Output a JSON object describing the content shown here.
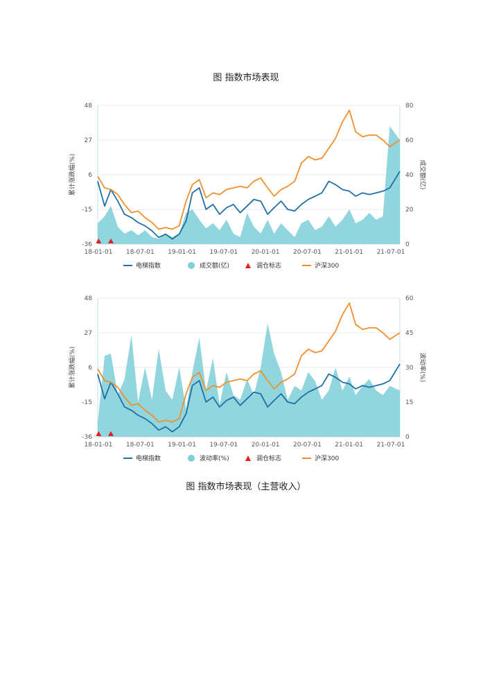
{
  "page": {
    "title_top": "图 指数市场表现",
    "title_bottom": "图 指数市场表现（主营收入）"
  },
  "colors": {
    "elevator": "#1f6fa5",
    "hs300": "#f0902a",
    "fill": "#7ecfd8",
    "flag": "#e02020",
    "grid": "#e8e8e8",
    "axis": "#bfe6ea"
  },
  "chart_data": [
    {
      "type": "line",
      "y_left": {
        "label": "累计涨跌幅(%)",
        "ticks": [
          "48",
          "27",
          "6",
          "-15",
          "-36"
        ],
        "range": [
          -36,
          48
        ]
      },
      "y_right": {
        "label": "成交额(亿)",
        "ticks": [
          "80",
          "60",
          "40",
          "20",
          "0"
        ],
        "range": [
          0,
          80
        ]
      },
      "x_ticks": [
        "18-01-01",
        "18-07-01",
        "19-01-01",
        "19-07-01",
        "20-01-01",
        "20-07-01",
        "21-01-01",
        "21-07-01"
      ],
      "x_range": [
        "2018-01-01",
        "2021-09-15"
      ],
      "legend": [
        {
          "label": "电梯指数",
          "kind": "line",
          "color": "#1f6fa5"
        },
        {
          "label": "成交额(亿)",
          "kind": "dot",
          "color": "#7ecfd8"
        },
        {
          "label": "调仓标志",
          "kind": "triangle",
          "color": "#e02020"
        },
        {
          "label": "沪深300",
          "kind": "line",
          "color": "#f0902a"
        }
      ],
      "series": [
        {
          "name": "电梯指数",
          "axis": "left",
          "x": [
            "2018-01-01",
            "2018-02-01",
            "2018-03-01",
            "2018-04-01",
            "2018-05-01",
            "2018-06-01",
            "2018-07-01",
            "2018-08-01",
            "2018-09-01",
            "2018-10-01",
            "2018-11-01",
            "2018-12-01",
            "2019-01-01",
            "2019-02-01",
            "2019-03-01",
            "2019-04-01",
            "2019-05-01",
            "2019-06-01",
            "2019-07-01",
            "2019-08-01",
            "2019-09-01",
            "2019-10-01",
            "2019-11-01",
            "2019-12-01",
            "2020-01-01",
            "2020-02-01",
            "2020-03-01",
            "2020-04-01",
            "2020-05-01",
            "2020-06-01",
            "2020-07-01",
            "2020-08-01",
            "2020-09-01",
            "2020-10-01",
            "2020-11-01",
            "2020-12-01",
            "2021-01-01",
            "2021-02-01",
            "2021-03-01",
            "2021-04-01",
            "2021-05-01",
            "2021-06-01",
            "2021-07-01",
            "2021-08-01",
            "2021-09-15"
          ],
          "y": [
            2,
            -13,
            -3,
            -10,
            -18,
            -20,
            -23,
            -25,
            -28,
            -32,
            -30,
            -33,
            -30,
            -22,
            -5,
            -2,
            -15,
            -12,
            -18,
            -14,
            -12,
            -17,
            -13,
            -9,
            -10,
            -18,
            -14,
            -10,
            -15,
            -16,
            -12,
            -9,
            -7,
            -5,
            2,
            0,
            -3,
            -4,
            -7,
            -5,
            -6,
            -5,
            -4,
            -2,
            8
          ]
        },
        {
          "name": "沪深300",
          "axis": "left",
          "x": [
            "2018-01-01",
            "2018-02-01",
            "2018-03-01",
            "2018-04-01",
            "2018-05-01",
            "2018-06-01",
            "2018-07-01",
            "2018-08-01",
            "2018-09-01",
            "2018-10-01",
            "2018-11-01",
            "2018-12-01",
            "2019-01-01",
            "2019-02-01",
            "2019-03-01",
            "2019-04-01",
            "2019-05-01",
            "2019-06-01",
            "2019-07-01",
            "2019-08-01",
            "2019-09-01",
            "2019-10-01",
            "2019-11-01",
            "2019-12-01",
            "2020-01-01",
            "2020-02-01",
            "2020-03-01",
            "2020-04-01",
            "2020-05-01",
            "2020-06-01",
            "2020-07-01",
            "2020-08-01",
            "2020-09-01",
            "2020-10-01",
            "2020-11-01",
            "2020-12-01",
            "2021-01-01",
            "2021-02-01",
            "2021-03-01",
            "2021-04-01",
            "2021-05-01",
            "2021-06-01",
            "2021-07-01",
            "2021-08-01",
            "2021-09-15"
          ],
          "y": [
            5,
            -2,
            -3,
            -6,
            -12,
            -17,
            -16,
            -20,
            -23,
            -27,
            -26,
            -27,
            -25,
            -10,
            0,
            3,
            -8,
            -5,
            -6,
            -3,
            -2,
            -1,
            -2,
            2,
            4,
            -2,
            -7,
            -3,
            -1,
            2,
            13,
            17,
            15,
            16,
            22,
            28,
            38,
            45,
            32,
            29,
            30,
            30,
            27,
            23,
            27
          ]
        },
        {
          "name": "成交额(亿)",
          "axis": "right",
          "x": [
            "2018-01-01",
            "2018-02-01",
            "2018-03-01",
            "2018-04-01",
            "2018-05-01",
            "2018-06-01",
            "2018-07-01",
            "2018-08-01",
            "2018-09-01",
            "2018-10-01",
            "2018-11-01",
            "2018-12-01",
            "2019-01-01",
            "2019-02-01",
            "2019-03-01",
            "2019-04-01",
            "2019-05-01",
            "2019-06-01",
            "2019-07-01",
            "2019-08-01",
            "2019-09-01",
            "2019-10-01",
            "2019-11-01",
            "2019-12-01",
            "2020-01-01",
            "2020-02-01",
            "2020-03-01",
            "2020-04-01",
            "2020-05-01",
            "2020-06-01",
            "2020-07-01",
            "2020-08-01",
            "2020-09-01",
            "2020-10-01",
            "2020-11-01",
            "2020-12-01",
            "2021-01-01",
            "2021-02-01",
            "2021-03-01",
            "2021-04-01",
            "2021-05-01",
            "2021-06-01",
            "2021-07-01",
            "2021-08-01",
            "2021-09-15"
          ],
          "y": [
            12,
            16,
            22,
            10,
            6,
            8,
            5,
            8,
            4,
            3,
            6,
            4,
            6,
            18,
            20,
            14,
            9,
            12,
            8,
            14,
            6,
            4,
            18,
            10,
            6,
            14,
            6,
            12,
            8,
            4,
            12,
            14,
            8,
            10,
            16,
            10,
            14,
            20,
            12,
            14,
            18,
            14,
            16,
            68,
            60
          ]
        }
      ],
      "markers": {
        "name": "调仓标志",
        "x": [
          "2018-01-05",
          "2018-03-01"
        ]
      }
    },
    {
      "type": "line",
      "y_left": {
        "label": "累计涨跌幅(%)",
        "ticks": [
          "48",
          "27",
          "6",
          "-15",
          "-36"
        ],
        "range": [
          -36,
          48
        ]
      },
      "y_right": {
        "label": "波动率(%)",
        "ticks": [
          "60",
          "45",
          "30",
          "15",
          "0"
        ],
        "range": [
          0,
          60
        ]
      },
      "x_ticks": [
        "18-01-01",
        "18-07-01",
        "19-01-01",
        "19-07-01",
        "20-01-01",
        "20-07-01",
        "21-01-01",
        "21-07-01"
      ],
      "x_range": [
        "2018-01-01",
        "2021-09-15"
      ],
      "legend": [
        {
          "label": "电梯指数",
          "kind": "line",
          "color": "#1f6fa5"
        },
        {
          "label": "波动率(%)",
          "kind": "dot",
          "color": "#7ecfd8"
        },
        {
          "label": "调仓标志",
          "kind": "triangle",
          "color": "#e02020"
        },
        {
          "label": "沪深300",
          "kind": "line",
          "color": "#f0902a"
        }
      ],
      "series": [
        {
          "name": "电梯指数",
          "axis": "left",
          "x": [
            "2018-01-01",
            "2018-02-01",
            "2018-03-01",
            "2018-04-01",
            "2018-05-01",
            "2018-06-01",
            "2018-07-01",
            "2018-08-01",
            "2018-09-01",
            "2018-10-01",
            "2018-11-01",
            "2018-12-01",
            "2019-01-01",
            "2019-02-01",
            "2019-03-01",
            "2019-04-01",
            "2019-05-01",
            "2019-06-01",
            "2019-07-01",
            "2019-08-01",
            "2019-09-01",
            "2019-10-01",
            "2019-11-01",
            "2019-12-01",
            "2020-01-01",
            "2020-02-01",
            "2020-03-01",
            "2020-04-01",
            "2020-05-01",
            "2020-06-01",
            "2020-07-01",
            "2020-08-01",
            "2020-09-01",
            "2020-10-01",
            "2020-11-01",
            "2020-12-01",
            "2021-01-01",
            "2021-02-01",
            "2021-03-01",
            "2021-04-01",
            "2021-05-01",
            "2021-06-01",
            "2021-07-01",
            "2021-08-01",
            "2021-09-15"
          ],
          "y": [
            2,
            -13,
            -3,
            -10,
            -18,
            -20,
            -23,
            -25,
            -28,
            -32,
            -30,
            -33,
            -30,
            -22,
            -5,
            -2,
            -15,
            -12,
            -18,
            -14,
            -12,
            -17,
            -13,
            -9,
            -10,
            -18,
            -14,
            -10,
            -15,
            -16,
            -12,
            -9,
            -7,
            -5,
            2,
            0,
            -3,
            -4,
            -7,
            -5,
            -6,
            -5,
            -4,
            -2,
            8
          ]
        },
        {
          "name": "沪深300",
          "axis": "left",
          "x": [
            "2018-01-01",
            "2018-02-01",
            "2018-03-01",
            "2018-04-01",
            "2018-05-01",
            "2018-06-01",
            "2018-07-01",
            "2018-08-01",
            "2018-09-01",
            "2018-10-01",
            "2018-11-01",
            "2018-12-01",
            "2019-01-01",
            "2019-02-01",
            "2019-03-01",
            "2019-04-01",
            "2019-05-01",
            "2019-06-01",
            "2019-07-01",
            "2019-08-01",
            "2019-09-01",
            "2019-10-01",
            "2019-11-01",
            "2019-12-01",
            "2020-01-01",
            "2020-02-01",
            "2020-03-01",
            "2020-04-01",
            "2020-05-01",
            "2020-06-01",
            "2020-07-01",
            "2020-08-01",
            "2020-09-01",
            "2020-10-01",
            "2020-11-01",
            "2020-12-01",
            "2021-01-01",
            "2021-02-01",
            "2021-03-01",
            "2021-04-01",
            "2021-05-01",
            "2021-06-01",
            "2021-07-01",
            "2021-08-01",
            "2021-09-15"
          ],
          "y": [
            5,
            -2,
            -3,
            -6,
            -12,
            -17,
            -16,
            -20,
            -23,
            -27,
            -26,
            -27,
            -25,
            -10,
            0,
            3,
            -8,
            -5,
            -6,
            -3,
            -2,
            -1,
            -2,
            2,
            4,
            -2,
            -7,
            -3,
            -1,
            2,
            13,
            17,
            15,
            16,
            22,
            28,
            38,
            45,
            32,
            29,
            30,
            30,
            27,
            23,
            27
          ]
        },
        {
          "name": "波动率(%)",
          "axis": "right",
          "x": [
            "2018-01-01",
            "2018-02-01",
            "2018-03-01",
            "2018-04-01",
            "2018-05-01",
            "2018-06-01",
            "2018-07-01",
            "2018-08-01",
            "2018-09-01",
            "2018-10-01",
            "2018-11-01",
            "2018-12-01",
            "2019-01-01",
            "2019-02-01",
            "2019-03-01",
            "2019-04-01",
            "2019-05-01",
            "2019-06-01",
            "2019-07-01",
            "2019-08-01",
            "2019-09-01",
            "2019-10-01",
            "2019-11-01",
            "2019-12-01",
            "2020-01-01",
            "2020-02-01",
            "2020-03-01",
            "2020-04-01",
            "2020-05-01",
            "2020-06-01",
            "2020-07-01",
            "2020-08-01",
            "2020-09-01",
            "2020-10-01",
            "2020-11-01",
            "2020-12-01",
            "2021-01-01",
            "2021-02-01",
            "2021-03-01",
            "2021-04-01",
            "2021-05-01",
            "2021-06-01",
            "2021-07-01",
            "2021-08-01",
            "2021-09-15"
          ],
          "y": [
            6,
            35,
            36,
            18,
            25,
            44,
            15,
            30,
            16,
            38,
            20,
            16,
            30,
            12,
            28,
            43,
            20,
            34,
            14,
            28,
            18,
            16,
            25,
            18,
            30,
            49,
            36,
            28,
            16,
            22,
            20,
            28,
            24,
            16,
            20,
            30,
            20,
            26,
            18,
            22,
            25,
            20,
            18,
            22,
            20
          ]
        }
      ],
      "markers": {
        "name": "调仓标志",
        "x": [
          "2018-01-05",
          "2018-03-01"
        ]
      }
    }
  ]
}
